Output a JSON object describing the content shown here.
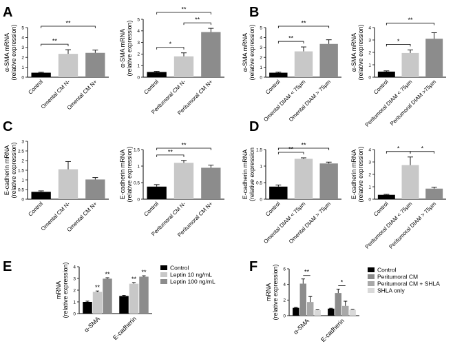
{
  "colors": {
    "control": "#000000",
    "light": "#c8c8c8",
    "medium": "#8c8c8c",
    "lighter": "#d9d9d9"
  },
  "chart_data": [
    {
      "panel": "A",
      "type": "bar",
      "ylabel": [
        "α-SMA mRNA",
        "(relative expression)"
      ],
      "ylim": [
        0,
        5
      ],
      "yticks": [
        0,
        1,
        2,
        3,
        4,
        5
      ],
      "categories": [
        "Control",
        "Omental CM N-",
        "Omental CM N+"
      ],
      "values": [
        0.45,
        2.35,
        2.45
      ],
      "errors": [
        0.05,
        0.42,
        0.28
      ],
      "colors": [
        "#000000",
        "#c8c8c8",
        "#8c8c8c"
      ],
      "sig": [
        {
          "from": 0,
          "to": 1,
          "label": "**"
        },
        {
          "from": 0,
          "to": 2,
          "label": "**"
        }
      ]
    },
    {
      "panel": "",
      "type": "bar",
      "ylabel": [
        "α-SMA mRNA",
        "(relative expression)"
      ],
      "ylim": [
        0,
        5
      ],
      "yticks": [
        0,
        1,
        2,
        3,
        4,
        5
      ],
      "categories": [
        "Control",
        "Peritumoral CM N-",
        "Peritumoral CM N+"
      ],
      "values": [
        0.45,
        1.8,
        3.9
      ],
      "errors": [
        0.05,
        0.3,
        0.32
      ],
      "colors": [
        "#000000",
        "#c8c8c8",
        "#8c8c8c"
      ],
      "sig": [
        {
          "from": 0,
          "to": 1,
          "label": "*"
        },
        {
          "from": 1,
          "to": 2,
          "label": "**"
        },
        {
          "from": 0,
          "to": 2,
          "label": "**"
        }
      ]
    },
    {
      "panel": "B",
      "type": "bar",
      "ylabel": [
        "α-SMA mRNA",
        "(relative expression)"
      ],
      "ylim": [
        0,
        5
      ],
      "yticks": [
        0,
        1,
        2,
        3,
        4,
        5
      ],
      "categories": [
        "Control",
        "Omental DIAM < 75µm",
        "Omental DIAM > 75µm"
      ],
      "values": [
        0.45,
        2.6,
        3.35
      ],
      "errors": [
        0.06,
        0.45,
        0.42
      ],
      "colors": [
        "#000000",
        "#c8c8c8",
        "#8c8c8c"
      ],
      "sig": [
        {
          "from": 0,
          "to": 1,
          "label": "**"
        },
        {
          "from": 0,
          "to": 2,
          "label": "**"
        }
      ]
    },
    {
      "panel": "",
      "type": "bar",
      "ylabel": [
        "α-SMA mRNA",
        "(relative expression)"
      ],
      "ylim": [
        0,
        4
      ],
      "yticks": [
        0,
        1,
        2,
        3,
        4
      ],
      "categories": [
        "Control",
        "Peritumoral DIAM < 75µm",
        "Peritumoral DIAM >75µm"
      ],
      "values": [
        0.45,
        1.95,
        3.1
      ],
      "errors": [
        0.06,
        0.25,
        0.48
      ],
      "colors": [
        "#000000",
        "#c8c8c8",
        "#8c8c8c"
      ],
      "sig": [
        {
          "from": 0,
          "to": 1,
          "label": "*"
        },
        {
          "from": 0,
          "to": 2,
          "label": "**"
        }
      ]
    },
    {
      "panel": "C",
      "type": "bar",
      "ylabel": [
        "E-cadherin mRNA",
        "(relative expression)"
      ],
      "ylim": [
        0,
        3
      ],
      "yticks": [
        0,
        0.5,
        1,
        1.5,
        2,
        2.5,
        3
      ],
      "categories": [
        "Control",
        "Omental CM N-",
        "Omental CM N+"
      ],
      "values": [
        0.38,
        1.55,
        1.02
      ],
      "errors": [
        0.05,
        0.4,
        0.1
      ],
      "colors": [
        "#000000",
        "#c8c8c8",
        "#8c8c8c"
      ],
      "sig": []
    },
    {
      "panel": "",
      "type": "bar",
      "ylabel": [
        "E-cadherin mRNA",
        "(relative expression)"
      ],
      "ylim": [
        0,
        1.5
      ],
      "yticks": [
        0,
        0.5,
        1,
        1.5
      ],
      "categories": [
        "Control",
        "Peritumoral CM N-",
        "Peritumoral CM N+"
      ],
      "values": [
        0.38,
        1.1,
        0.95
      ],
      "errors": [
        0.06,
        0.07,
        0.08
      ],
      "colors": [
        "#000000",
        "#c8c8c8",
        "#8c8c8c"
      ],
      "sig": [
        {
          "from": 0,
          "to": 1,
          "label": "**"
        },
        {
          "from": 0,
          "to": 2,
          "label": "**"
        }
      ]
    },
    {
      "panel": "D",
      "type": "bar",
      "ylabel": [
        "E-cadherin mRNA",
        "(relative expression"
      ],
      "ylim": [
        0,
        1.5
      ],
      "yticks": [
        0,
        0.5,
        1,
        1.5
      ],
      "categories": [
        "Control",
        "Omental DIAM < 75µm",
        "Omental DIAM > 75µm"
      ],
      "values": [
        0.38,
        1.22,
        1.08
      ],
      "errors": [
        0.05,
        0.03,
        0.04
      ],
      "colors": [
        "#000000",
        "#c8c8c8",
        "#8c8c8c"
      ],
      "sig": [
        {
          "from": 0,
          "to": 1,
          "label": "**"
        },
        {
          "from": 0,
          "to": 2,
          "label": "**"
        }
      ]
    },
    {
      "panel": "",
      "type": "bar",
      "ylabel": [
        "E-cadherin mRNA",
        "(relative expression)"
      ],
      "ylim": [
        0,
        4
      ],
      "yticks": [
        0,
        1,
        2,
        3,
        4
      ],
      "categories": [
        "Control",
        "Peritumoral DIAM < 75µm",
        "Peritumoral DIAM > 75µm"
      ],
      "values": [
        0.35,
        2.75,
        0.85
      ],
      "errors": [
        0.04,
        0.65,
        0.12
      ],
      "colors": [
        "#000000",
        "#c8c8c8",
        "#8c8c8c"
      ],
      "sig": [
        {
          "from": 0,
          "to": 1,
          "label": "*"
        },
        {
          "from": 1,
          "to": 2,
          "label": "*"
        }
      ]
    },
    {
      "panel": "E",
      "type": "bar",
      "ylabel": [
        "mRNA",
        "(relative expression)"
      ],
      "ylim": [
        0,
        4
      ],
      "yticks": [
        0,
        1,
        2,
        3,
        4
      ],
      "categories": [
        "α-SMA",
        "E-cadherin"
      ],
      "series": [
        {
          "name": "Control",
          "values": [
            1.0,
            1.5
          ],
          "errors": [
            0.06,
            0.06
          ],
          "color": "#000000",
          "stars": [
            "",
            ""
          ]
        },
        {
          "name": "Leptin 10 ng/mL",
          "values": [
            1.85,
            2.55
          ],
          "errors": [
            0.08,
            0.1
          ],
          "color": "#c8c8c8",
          "stars": [
            "**",
            "**"
          ]
        },
        {
          "name": "Leptin 100 ng/mL",
          "values": [
            2.98,
            3.15
          ],
          "errors": [
            0.08,
            0.08
          ],
          "color": "#8c8c8c",
          "stars": [
            "**",
            "**"
          ]
        }
      ]
    },
    {
      "panel": "F",
      "type": "bar",
      "ylabel": [
        "mRNA",
        "(relative expression)"
      ],
      "ylim": [
        0,
        6
      ],
      "yticks": [
        0,
        2,
        4,
        6
      ],
      "categories": [
        "α-SMA",
        "E-cadherin"
      ],
      "series": [
        {
          "name": "Control",
          "values": [
            1.0,
            0.9
          ],
          "errors": [
            0.05,
            0.05
          ],
          "color": "#000000"
        },
        {
          "name": "Peritumoral CM",
          "values": [
            4.1,
            2.9
          ],
          "errors": [
            0.6,
            0.5
          ],
          "color": "#8c8c8c"
        },
        {
          "name": "Peritumoral CM + SHLA",
          "values": [
            1.75,
            1.25
          ],
          "errors": [
            0.7,
            0.6
          ],
          "color": "#a8a8a8"
        },
        {
          "name": "SHLA only",
          "values": [
            0.7,
            0.75
          ],
          "errors": [
            0.05,
            0.05
          ],
          "color": "#d9d9d9"
        }
      ],
      "sig": [
        {
          "group": 0,
          "from": 1,
          "to": 2,
          "label": "**"
        },
        {
          "group": 1,
          "from": 1,
          "to": 2,
          "label": "*"
        }
      ]
    }
  ]
}
